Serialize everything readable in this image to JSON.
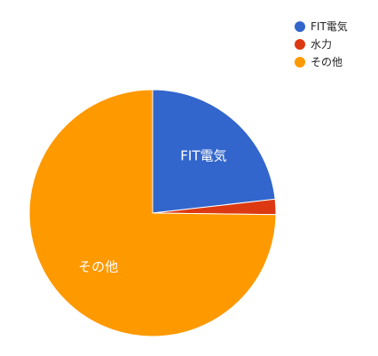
{
  "chart_data": {
    "type": "pie",
    "slices": [
      {
        "name": "FIT電気",
        "value": 23.2,
        "color": "#3366CC",
        "label_text": "FIT電気"
      },
      {
        "name": "水力",
        "value": 2.0,
        "color": "#DC3912",
        "label_text": ""
      },
      {
        "name": "その他",
        "value": 74.8,
        "color": "#FF9900",
        "label_text": "その他"
      }
    ],
    "legend": {
      "position": "top-right",
      "entries": [
        "FIT電気",
        "水力",
        "その他"
      ]
    },
    "title": ""
  }
}
